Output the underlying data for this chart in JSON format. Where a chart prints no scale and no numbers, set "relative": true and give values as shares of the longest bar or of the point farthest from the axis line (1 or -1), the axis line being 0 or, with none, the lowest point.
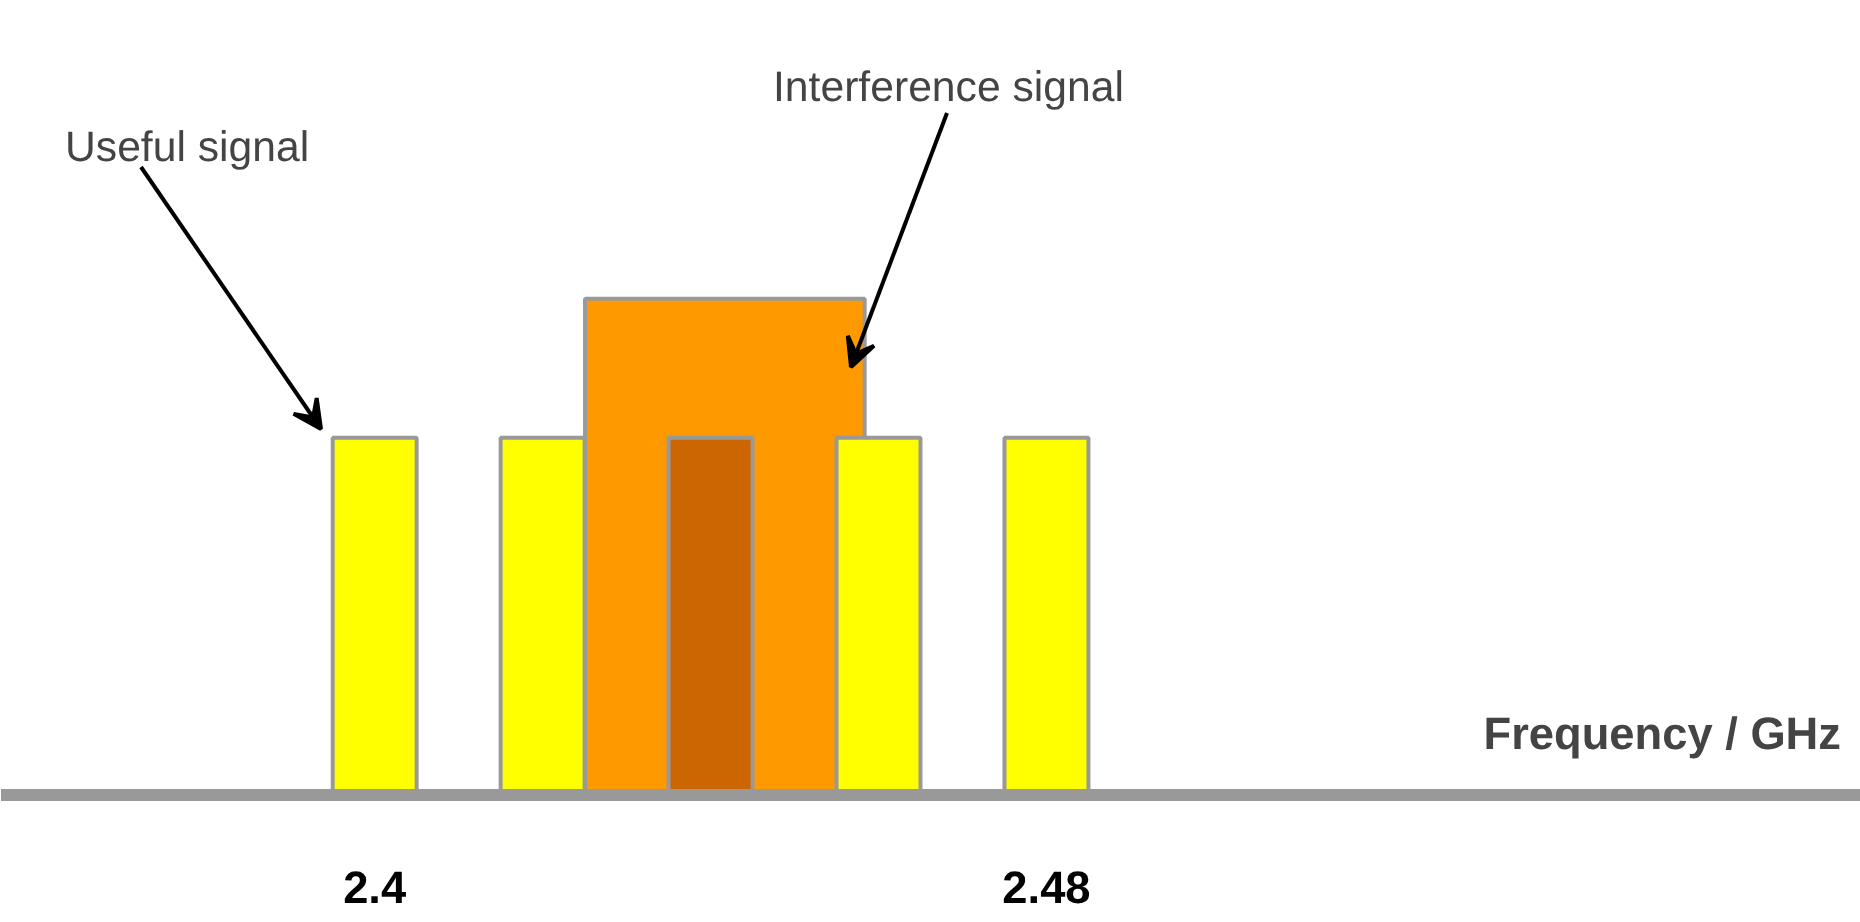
{
  "chart_data": {
    "type": "bar",
    "relative": true,
    "xlabel": "Frequency / GHz",
    "xlim": [
      2.3555,
      2.577
    ],
    "xticks": [
      2.4,
      2.48
    ],
    "series": [
      {
        "color": "#ff9900",
        "x": [
          2.4417
        ],
        "values": [
          1
        ]
      },
      {
        "colors": [
          "#ffff00",
          "#ffff00",
          "#cc6600",
          "#ffff00",
          "#ffff00"
        ],
        "x": [
          2.4,
          2.42,
          2.44,
          2.46,
          2.48
        ],
        "values": [
          0.72,
          0.72,
          0.72,
          0.72,
          0.72
        ]
      }
    ],
    "annotations": [
      "Useful signal",
      "Interference signal"
    ],
    "grid": false
  }
}
